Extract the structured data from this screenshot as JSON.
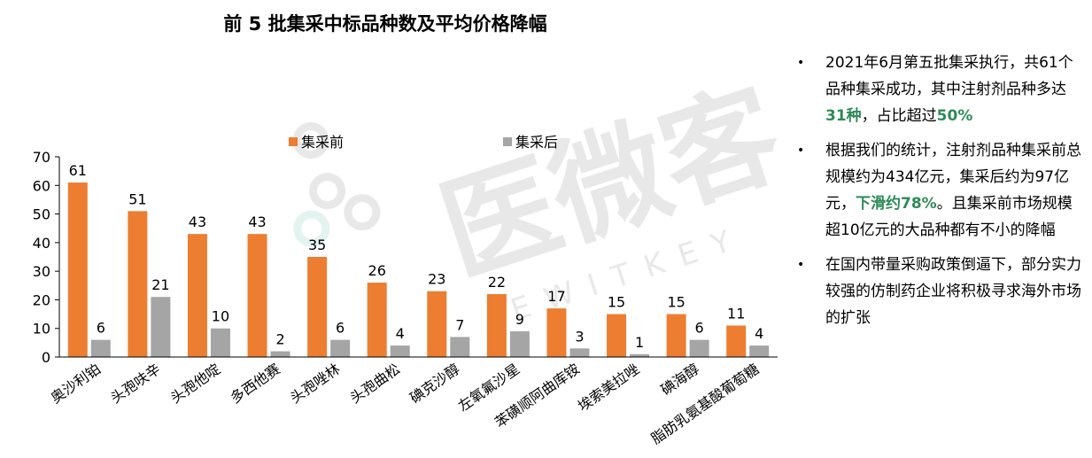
{
  "chart_data": {
    "type": "bar",
    "title": "前 5 批集采中标品种数及平均价格降幅",
    "categories": [
      "奥沙利铂",
      "头孢呋辛",
      "头孢他啶",
      "多西他赛",
      "头孢唑林",
      "头孢曲松",
      "碘克沙醇",
      "左氧氟沙星",
      "苯磺顺阿曲库铵",
      "埃索美拉唑",
      "碘海醇",
      "脂肪乳氨基酸葡萄糖"
    ],
    "series": [
      {
        "name": "集采前",
        "color": "#ed7d31",
        "values": [
          61,
          51,
          43,
          43,
          35,
          26,
          23,
          22,
          17,
          15,
          15,
          11
        ]
      },
      {
        "name": "集采后",
        "color": "#a5a5a5",
        "values": [
          6,
          21,
          10,
          2,
          6,
          4,
          7,
          9,
          3,
          1,
          6,
          4
        ]
      }
    ],
    "ylim": [
      0,
      70
    ],
    "yticks": [
      "0",
      "10",
      "20",
      "30",
      "40",
      "50",
      "60",
      "70"
    ],
    "legend_position": "top",
    "grid": false
  },
  "watermark": {
    "text": "医微客",
    "subtext": "EWITKEY"
  },
  "bullets": [
    {
      "parts": [
        {
          "text": "2021年6月第五批集采执行，共61个品种集采成功，其中注射剂品种多达",
          "hl": false
        },
        {
          "text": "31种",
          "hl": true
        },
        {
          "text": "，占比超过",
          "hl": false
        },
        {
          "text": "50%",
          "hl": true
        }
      ]
    },
    {
      "parts": [
        {
          "text": "根据我们的统计，注射剂品种集采前总规模约为434亿元，集采后约为97亿元，",
          "hl": false
        },
        {
          "text": "下滑约78%",
          "hl": true
        },
        {
          "text": "。且集采前市场规模超10亿元的大品种都有不小的降幅",
          "hl": false
        }
      ]
    },
    {
      "parts": [
        {
          "text": "在国内带量采购政策倒逼下，部分实力较强的仿制药企业将积极寻求海外市场的扩张",
          "hl": false
        }
      ]
    }
  ],
  "bullet_symbol": "•",
  "colors": {
    "highlight": "#2e8b57",
    "axis": "#000000"
  }
}
